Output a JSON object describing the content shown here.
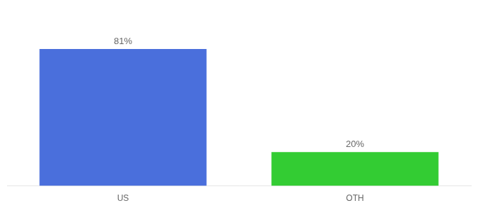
{
  "chart_data": {
    "type": "bar",
    "categories": [
      "US",
      "OTH"
    ],
    "values": [
      81,
      20
    ],
    "value_labels": [
      "81%",
      "20%"
    ],
    "colors": [
      "#4a6fdc",
      "#33cc33"
    ],
    "ylim": [
      0,
      100
    ],
    "grid": false,
    "data_labels": true,
    "tick_labels": "x"
  }
}
